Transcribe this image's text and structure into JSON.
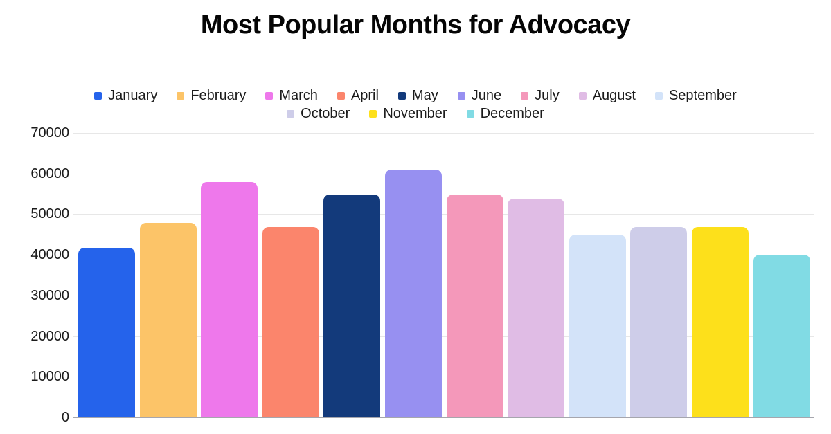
{
  "title": "Most Popular Months for Advocacy",
  "chart_data": {
    "type": "bar",
    "title": "Most Popular Months for Advocacy",
    "categories": [
      "January",
      "February",
      "March",
      "April",
      "May",
      "June",
      "July",
      "August",
      "September",
      "October",
      "November",
      "December"
    ],
    "values": [
      41700,
      47900,
      57900,
      46800,
      54800,
      61000,
      54900,
      53900,
      44900,
      46900,
      46900,
      40000
    ],
    "colors": [
      "#2563EB",
      "#FCC468",
      "#EE78EB",
      "#FB856C",
      "#133A7B",
      "#9790F1",
      "#F498BA",
      "#E0BCE5",
      "#D3E3F9",
      "#CECDE9",
      "#FDE01B",
      "#81DBE4"
    ],
    "xlabel": "",
    "ylabel": "",
    "ylim": [
      0,
      70000
    ],
    "yticks": [
      0,
      10000,
      20000,
      30000,
      40000,
      50000,
      60000,
      70000
    ],
    "grid": true,
    "legend_position": "top",
    "legend_row_split": [
      9,
      3
    ]
  },
  "style": {
    "background": "#ffffff",
    "text_color": "#1b1b1b",
    "grid_color": "#e7e7e7",
    "axis_line_color": "#a6a6ad",
    "title_color": "#050505"
  }
}
